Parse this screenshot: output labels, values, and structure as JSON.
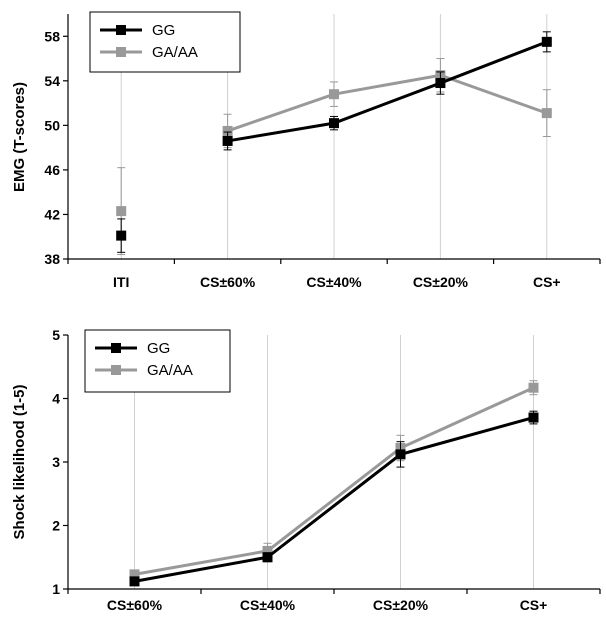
{
  "chart_data": [
    {
      "type": "line",
      "title": "",
      "xlabel": "",
      "ylabel": "EMG (T-scores)",
      "categories": [
        "ITI",
        "CS±60%",
        "CS±40%",
        "CS±20%",
        "CS+"
      ],
      "ylim": [
        38,
        60
      ],
      "yticks": [
        38,
        42,
        46,
        50,
        54,
        58
      ],
      "grid": "vertical",
      "legend_position": "top-left",
      "series": [
        {
          "name": "GG",
          "color": "#000000",
          "values": [
            40.1,
            48.6,
            50.2,
            53.8,
            57.5
          ],
          "error": [
            1.5,
            0.8,
            0.6,
            1.0,
            0.9
          ],
          "connect_from": 1
        },
        {
          "name": "GA/AA",
          "color": "#999999",
          "values": [
            42.3,
            49.5,
            52.8,
            54.5,
            51.1
          ],
          "error": [
            3.9,
            1.5,
            1.1,
            1.5,
            2.1
          ],
          "connect_from": 1
        }
      ]
    },
    {
      "type": "line",
      "title": "",
      "xlabel": "",
      "ylabel": "Shock likelihood (1-5)",
      "categories": [
        "CS±60%",
        "CS±40%",
        "CS±20%",
        "CS+"
      ],
      "ylim": [
        1,
        5
      ],
      "yticks": [
        1,
        2,
        3,
        4,
        5
      ],
      "grid": "vertical",
      "legend_position": "top-left",
      "series": [
        {
          "name": "GG",
          "color": "#000000",
          "values": [
            1.12,
            1.5,
            3.12,
            3.7
          ],
          "error": [
            0.05,
            0.07,
            0.2,
            0.1
          ],
          "connect_from": 0
        },
        {
          "name": "GA/AA",
          "color": "#999999",
          "values": [
            1.23,
            1.6,
            3.22,
            4.17
          ],
          "error": [
            0.06,
            0.12,
            0.2,
            0.11
          ],
          "connect_from": 0
        }
      ]
    }
  ]
}
